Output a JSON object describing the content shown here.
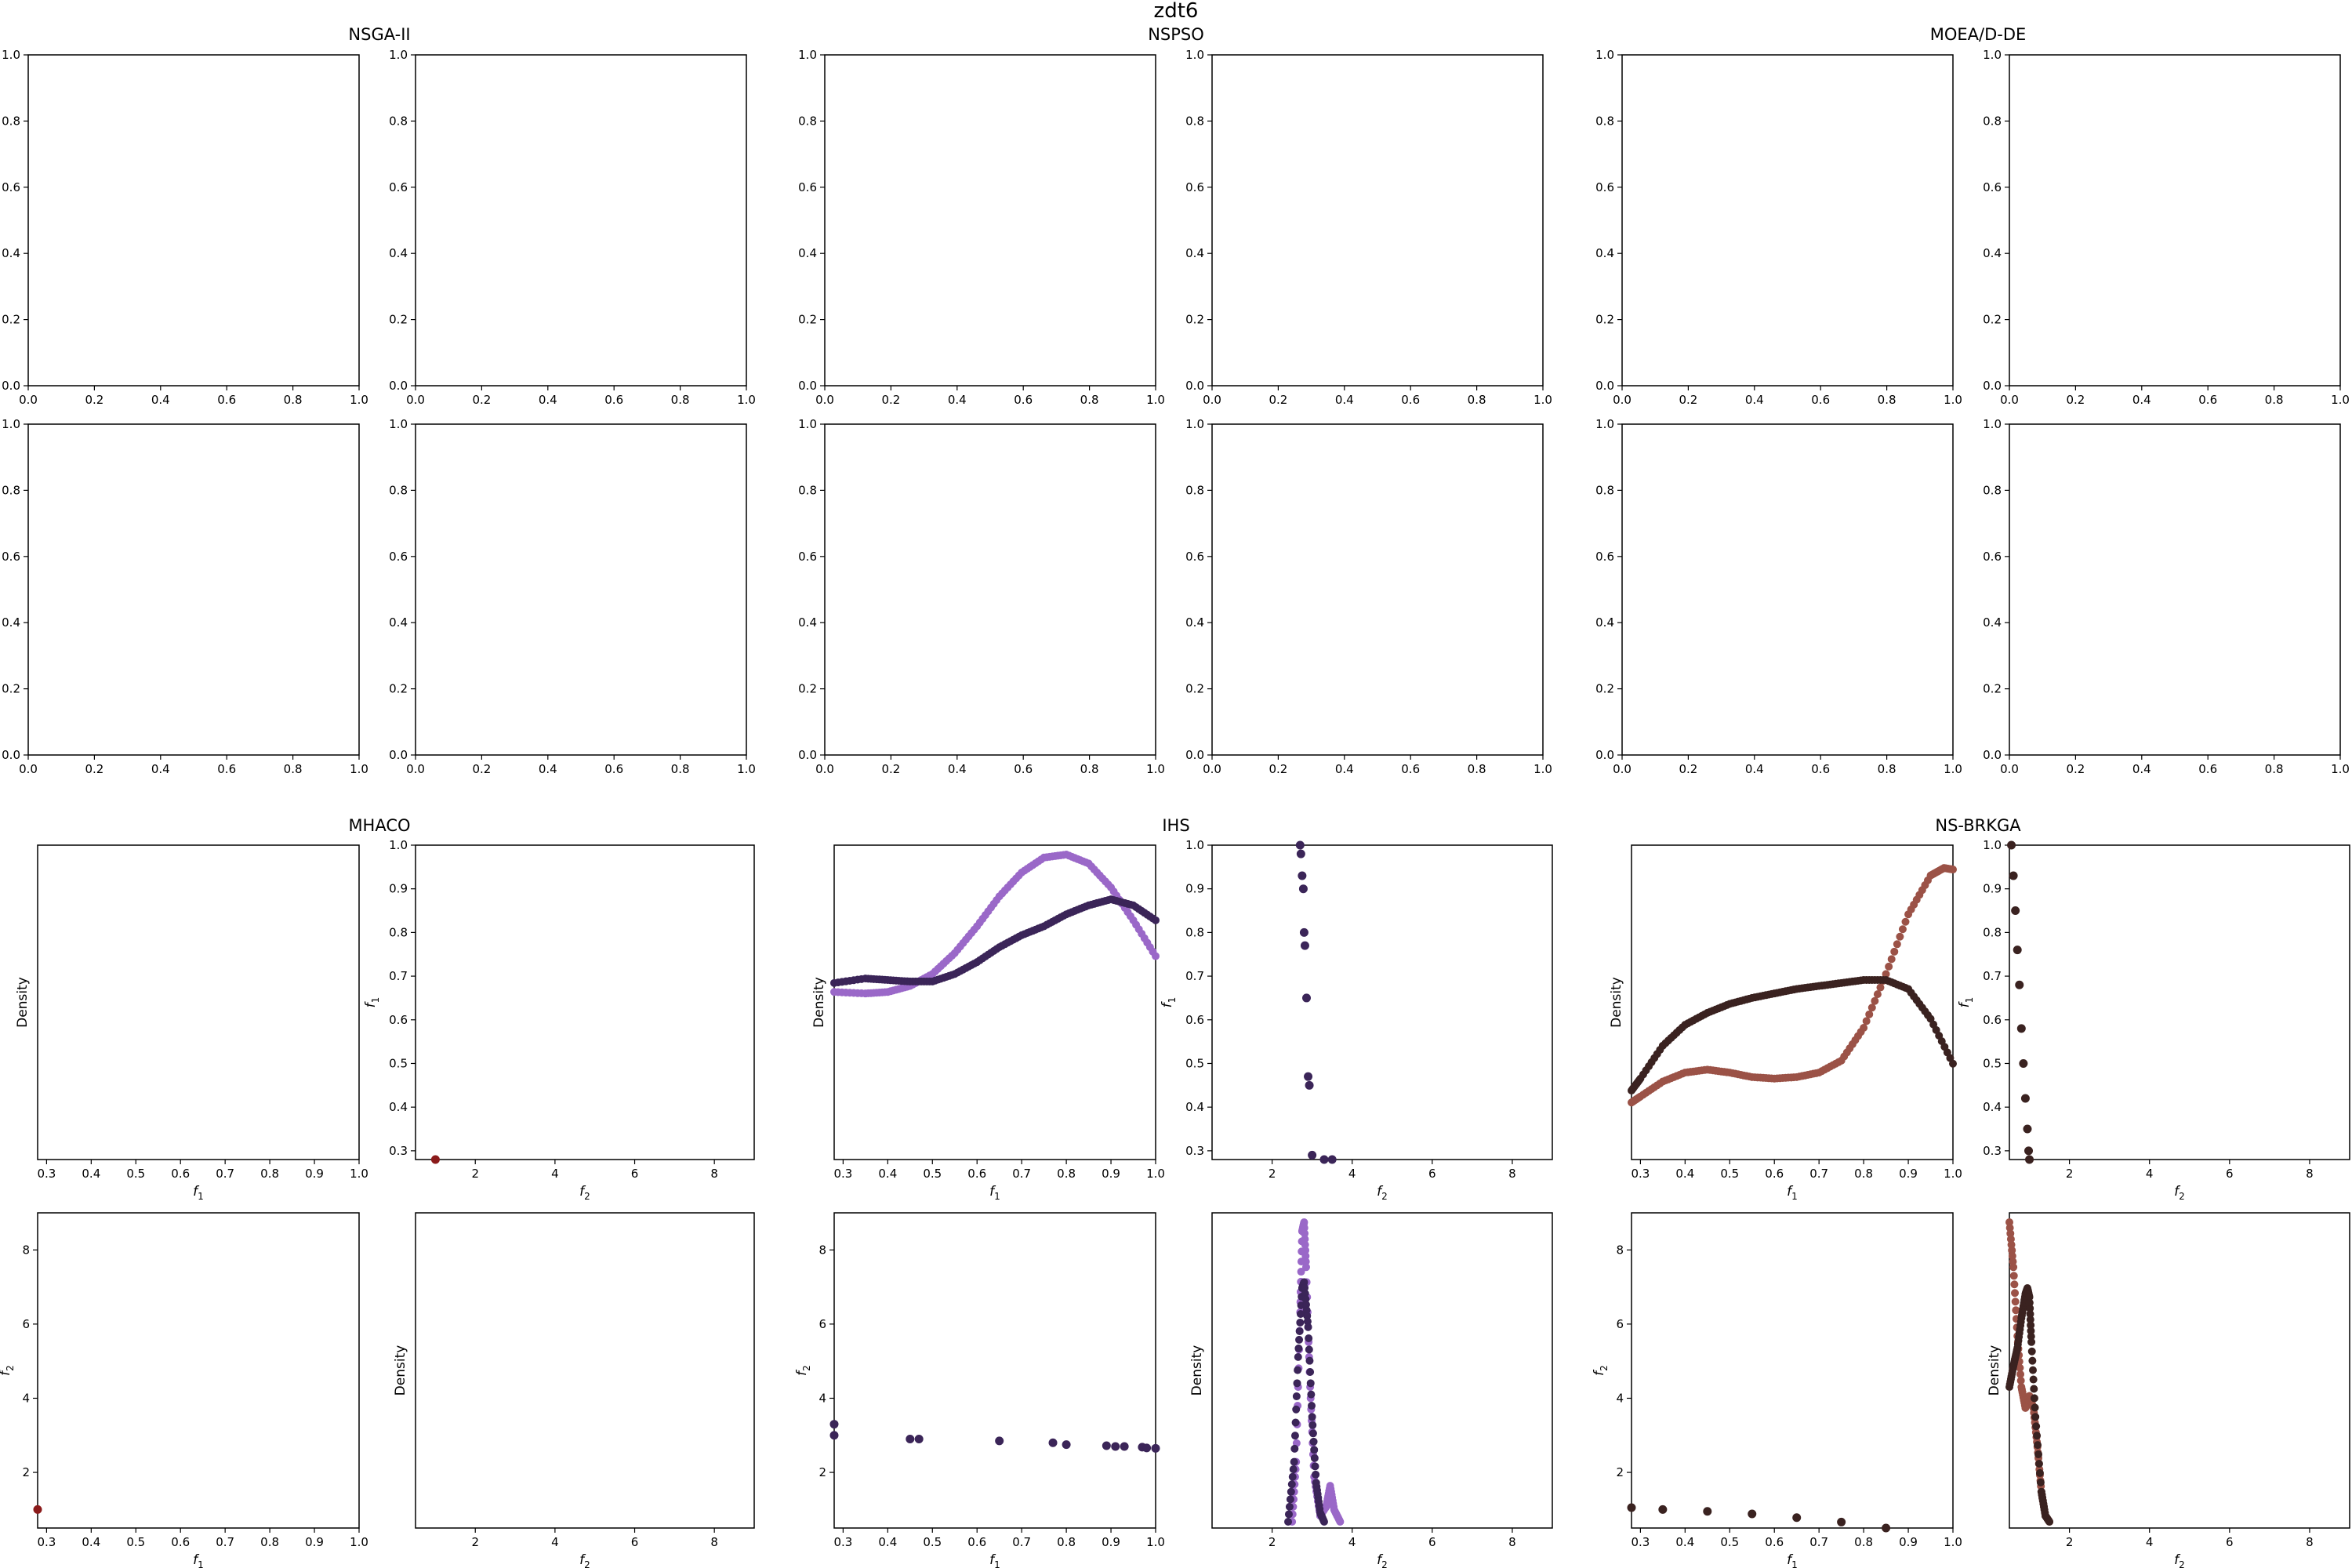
{
  "figure_title": "zdt6",
  "colors": {
    "ihs_light": "#9a68c8",
    "ihs_dark": "#3b2558",
    "brkga_light": "#9b5247",
    "brkga_dark": "#3a2220",
    "mhaco": "#8b1a1a",
    "axis": "#000000"
  },
  "axis_labels": {
    "f1": "f",
    "f1_sub": "1",
    "f2": "f",
    "f2_sub": "2",
    "density": "Density"
  },
  "chart_data": [
    {
      "type": "scatter",
      "group": "NSGA-II",
      "title": "NSGA-II",
      "xlim": [
        0,
        1
      ],
      "ylim": [
        0,
        1
      ],
      "series": []
    },
    {
      "type": "scatter",
      "group": "NSPSO",
      "title": "NSPSO",
      "xlim": [
        0,
        1
      ],
      "ylim": [
        0,
        1
      ],
      "series": []
    },
    {
      "type": "scatter",
      "group": "MOEA/D-DE",
      "title": "MOEA/D-DE",
      "xlim": [
        0,
        1
      ],
      "ylim": [
        0,
        1
      ],
      "series": []
    },
    {
      "type": "scatter",
      "group": "MHACO",
      "title": "MHACO",
      "xlim": [
        0.28,
        1.0
      ],
      "ylim": [
        0.28,
        1.0
      ],
      "xlabel": "f1",
      "ylabel": "f1/f2",
      "series": [
        {
          "values": [
            [
              1.0,
              0.28
            ]
          ]
        }
      ]
    },
    {
      "type": "line",
      "group": "IHS",
      "title": "IHS",
      "xlabel": "f1",
      "ylabel": "Density",
      "xlim": [
        0.28,
        1.0
      ],
      "series": [
        {
          "values": [
            [
              0.28,
              0.54
            ],
            [
              0.35,
              0.535
            ],
            [
              0.4,
              0.54
            ],
            [
              0.45,
              0.56
            ],
            [
              0.5,
              0.6
            ],
            [
              0.55,
              0.67
            ],
            [
              0.6,
              0.76
            ],
            [
              0.65,
              0.86
            ],
            [
              0.7,
              0.94
            ],
            [
              0.75,
              0.99
            ],
            [
              0.8,
              1.0
            ],
            [
              0.85,
              0.97
            ],
            [
              0.9,
              0.89
            ],
            [
              0.95,
              0.78
            ],
            [
              1.0,
              0.66
            ]
          ]
        },
        {
          "values": [
            [
              0.28,
              0.57
            ],
            [
              0.35,
              0.585
            ],
            [
              0.4,
              0.58
            ],
            [
              0.45,
              0.575
            ],
            [
              0.5,
              0.575
            ],
            [
              0.55,
              0.6
            ],
            [
              0.6,
              0.64
            ],
            [
              0.65,
              0.69
            ],
            [
              0.7,
              0.73
            ],
            [
              0.75,
              0.76
            ],
            [
              0.8,
              0.8
            ],
            [
              0.85,
              0.83
            ],
            [
              0.9,
              0.85
            ],
            [
              0.95,
              0.83
            ],
            [
              1.0,
              0.78
            ]
          ]
        }
      ]
    },
    {
      "type": "scatter",
      "group": "IHS",
      "xlabel": "f2",
      "ylabel": "f1",
      "xlim": [
        0.5,
        8.5
      ],
      "ylim": [
        0.28,
        1.0
      ],
      "series": [
        {
          "values": [
            [
              2.7,
              1.0
            ],
            [
              2.72,
              0.98
            ],
            [
              2.75,
              0.93
            ],
            [
              2.78,
              0.9
            ],
            [
              2.8,
              0.8
            ],
            [
              2.82,
              0.77
            ],
            [
              2.86,
              0.65
            ],
            [
              2.9,
              0.47
            ],
            [
              2.93,
              0.45
            ],
            [
              3.0,
              0.29
            ],
            [
              3.3,
              0.28
            ],
            [
              3.5,
              0.28
            ]
          ]
        }
      ]
    },
    {
      "type": "line",
      "group": "NS-BRKGA",
      "title": "NS-BRKGA",
      "xlabel": "f1",
      "ylabel": "Density",
      "xlim": [
        0.28,
        1.0
      ],
      "series": [
        {
          "values": [
            [
              0.28,
              0.17
            ],
            [
              0.3,
              0.19
            ],
            [
              0.35,
              0.24
            ],
            [
              0.4,
              0.27
            ],
            [
              0.45,
              0.28
            ],
            [
              0.5,
              0.27
            ],
            [
              0.55,
              0.255
            ],
            [
              0.6,
              0.25
            ],
            [
              0.65,
              0.255
            ],
            [
              0.7,
              0.27
            ],
            [
              0.75,
              0.31
            ],
            [
              0.8,
              0.42
            ],
            [
              0.85,
              0.6
            ],
            [
              0.9,
              0.8
            ],
            [
              0.95,
              0.93
            ],
            [
              0.98,
              0.955
            ],
            [
              1.0,
              0.95
            ]
          ]
        },
        {
          "values": [
            [
              0.28,
              0.21
            ],
            [
              0.3,
              0.25
            ],
            [
              0.35,
              0.36
            ],
            [
              0.4,
              0.43
            ],
            [
              0.45,
              0.47
            ],
            [
              0.5,
              0.5
            ],
            [
              0.55,
              0.52
            ],
            [
              0.6,
              0.535
            ],
            [
              0.65,
              0.55
            ],
            [
              0.7,
              0.56
            ],
            [
              0.75,
              0.57
            ],
            [
              0.8,
              0.58
            ],
            [
              0.85,
              0.58
            ],
            [
              0.9,
              0.55
            ],
            [
              0.95,
              0.45
            ],
            [
              1.0,
              0.3
            ]
          ]
        }
      ]
    },
    {
      "type": "scatter",
      "group": "NS-BRKGA",
      "xlabel": "f2",
      "ylabel": "f1",
      "xlim": [
        0.5,
        8.5
      ],
      "ylim": [
        0.28,
        1.0
      ],
      "series": [
        {
          "values": [
            [
              0.55,
              1.0
            ],
            [
              0.6,
              0.93
            ],
            [
              0.65,
              0.85
            ],
            [
              0.7,
              0.76
            ],
            [
              0.75,
              0.68
            ],
            [
              0.8,
              0.58
            ],
            [
              0.85,
              0.5
            ],
            [
              0.9,
              0.42
            ],
            [
              0.95,
              0.35
            ],
            [
              0.98,
              0.3
            ],
            [
              1.0,
              0.28
            ]
          ]
        }
      ]
    },
    {
      "type": "scatter",
      "group": "MHACO",
      "xlabel": "f1",
      "ylabel": "f2",
      "xlim": [
        0.28,
        1.0
      ],
      "ylim": [
        0.5,
        8.5
      ],
      "series": [
        {
          "values": [
            [
              0.28,
              1.0
            ]
          ]
        }
      ]
    },
    {
      "type": "scatter",
      "group": "IHS",
      "xlabel": "f1",
      "ylabel": "f2",
      "xlim": [
        0.28,
        1.0
      ],
      "ylim": [
        0.5,
        8.5
      ],
      "series": [
        {
          "values": [
            [
              0.28,
              3.3
            ],
            [
              0.28,
              3.0
            ],
            [
              0.45,
              2.9
            ],
            [
              0.47,
              2.9
            ],
            [
              0.65,
              2.85
            ],
            [
              0.77,
              2.8
            ],
            [
              0.8,
              2.75
            ],
            [
              0.89,
              2.72
            ],
            [
              0.91,
              2.7
            ],
            [
              0.93,
              2.7
            ],
            [
              0.97,
              2.68
            ],
            [
              0.98,
              2.66
            ],
            [
              1.0,
              2.65
            ]
          ]
        }
      ]
    },
    {
      "type": "line",
      "group": "IHS",
      "xlabel": "f2",
      "ylabel": "Density",
      "xlim": [
        0.5,
        8.5
      ],
      "series": [
        {
          "values": [
            [
              2.5,
              0.0
            ],
            [
              2.6,
              0.2
            ],
            [
              2.7,
              0.7
            ],
            [
              2.75,
              0.97
            ],
            [
              2.8,
              1.0
            ],
            [
              2.85,
              0.85
            ],
            [
              2.95,
              0.45
            ],
            [
              3.05,
              0.15
            ],
            [
              3.2,
              0.02
            ],
            [
              3.35,
              0.05
            ],
            [
              3.45,
              0.12
            ],
            [
              3.55,
              0.04
            ],
            [
              3.7,
              0.0
            ]
          ]
        },
        {
          "values": [
            [
              2.4,
              0.0
            ],
            [
              2.55,
              0.2
            ],
            [
              2.65,
              0.55
            ],
            [
              2.75,
              0.78
            ],
            [
              2.8,
              0.8
            ],
            [
              2.9,
              0.65
            ],
            [
              3.0,
              0.35
            ],
            [
              3.1,
              0.13
            ],
            [
              3.2,
              0.03
            ],
            [
              3.3,
              0.0
            ]
          ]
        }
      ]
    },
    {
      "type": "scatter",
      "group": "NS-BRKGA",
      "xlabel": "f1",
      "ylabel": "f2",
      "xlim": [
        0.28,
        1.0
      ],
      "ylim": [
        0.5,
        8.5
      ],
      "series": [
        {
          "values": [
            [
              0.28,
              1.05
            ],
            [
              0.35,
              1.0
            ],
            [
              0.45,
              0.95
            ],
            [
              0.55,
              0.88
            ],
            [
              0.65,
              0.78
            ],
            [
              0.75,
              0.66
            ],
            [
              0.85,
              0.5
            ],
            [
              0.95,
              0.35
            ],
            [
              1.0,
              0.22
            ]
          ]
        }
      ]
    },
    {
      "type": "line",
      "group": "NS-BRKGA",
      "xlabel": "f2",
      "ylabel": "Density",
      "xlim": [
        0.5,
        8.5
      ],
      "series": [
        {
          "values": [
            [
              0.5,
              1.0
            ],
            [
              0.6,
              0.85
            ],
            [
              0.7,
              0.62
            ],
            [
              0.8,
              0.45
            ],
            [
              0.9,
              0.38
            ],
            [
              1.0,
              0.42
            ],
            [
              1.1,
              0.38
            ],
            [
              1.2,
              0.25
            ],
            [
              1.3,
              0.1
            ],
            [
              1.4,
              0.02
            ],
            [
              1.5,
              0.0
            ]
          ]
        },
        {
          "values": [
            [
              0.5,
              0.45
            ],
            [
              0.6,
              0.52
            ],
            [
              0.7,
              0.58
            ],
            [
              0.8,
              0.68
            ],
            [
              0.9,
              0.76
            ],
            [
              0.95,
              0.78
            ],
            [
              1.0,
              0.75
            ],
            [
              1.05,
              0.6
            ],
            [
              1.15,
              0.35
            ],
            [
              1.3,
              0.1
            ],
            [
              1.4,
              0.02
            ],
            [
              1.5,
              0.0
            ]
          ]
        }
      ]
    }
  ]
}
